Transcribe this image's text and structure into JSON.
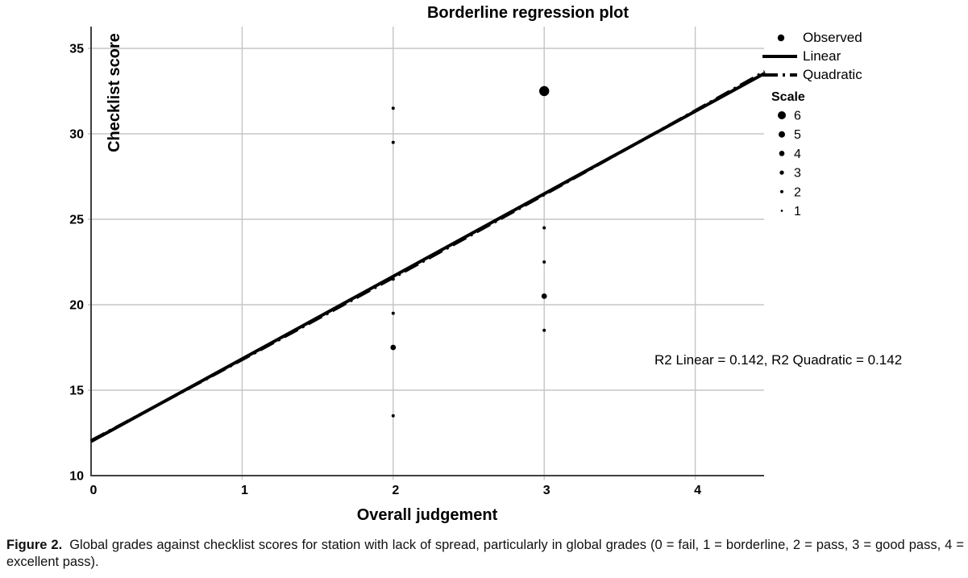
{
  "chart_data": {
    "type": "scatter",
    "title": "Borderline regression plot",
    "xlabel": "Overall judgement",
    "ylabel": "Checklist score",
    "xlim": [
      0,
      4.46
    ],
    "ylim": [
      10,
      36.3
    ],
    "xticks": [
      0,
      1,
      2,
      3,
      4
    ],
    "yticks": [
      10,
      15,
      20,
      25,
      30,
      35
    ],
    "grid": true,
    "points": [
      {
        "x": 2,
        "y": 31.5,
        "scale": 1
      },
      {
        "x": 2,
        "y": 29.5,
        "scale": 1
      },
      {
        "x": 2,
        "y": 21.5,
        "scale": 1
      },
      {
        "x": 2,
        "y": 19.5,
        "scale": 1
      },
      {
        "x": 2,
        "y": 17.5,
        "scale": 3
      },
      {
        "x": 2,
        "y": 13.5,
        "scale": 1
      },
      {
        "x": 3,
        "y": 32.5,
        "scale": 6
      },
      {
        "x": 3,
        "y": 24.5,
        "scale": 1
      },
      {
        "x": 3,
        "y": 22.5,
        "scale": 1
      },
      {
        "x": 3,
        "y": 20.5,
        "scale": 3
      },
      {
        "x": 3,
        "y": 18.5,
        "scale": 1
      }
    ],
    "fit_lines": [
      {
        "name": "Linear",
        "intercept": 12.0,
        "slope": 4.83,
        "quad": 0,
        "style": "solid",
        "r2": 0.142
      },
      {
        "name": "Quadratic",
        "intercept": 12.05,
        "slope": 4.7,
        "quad": 0.032,
        "style": "dashdot",
        "r2": 0.142
      }
    ],
    "legend": {
      "items": [
        {
          "label": "Observed",
          "marker": "dot"
        },
        {
          "label": "Linear",
          "marker": "solid-line"
        },
        {
          "label": "Quadratic",
          "marker": "dashdot-line"
        }
      ],
      "scale_title": "Scale",
      "scale_items": [
        6,
        5,
        4,
        3,
        2,
        1
      ]
    },
    "annotation": "R2 Linear = 0.142, R2 Quadratic = 0.142"
  },
  "caption": {
    "label": "Figure 2.",
    "text": "Global grades against checklist scores for station with lack of spread, particularly in global grades (0 = fail, 1 = borderline, 2 = pass, 3 = good pass, 4 = excellent pass)."
  },
  "colors": {
    "grid": "#c5c5c5",
    "axis": "#3f3f3f",
    "ink": "#000000",
    "figure_label": "#2d3a96"
  }
}
